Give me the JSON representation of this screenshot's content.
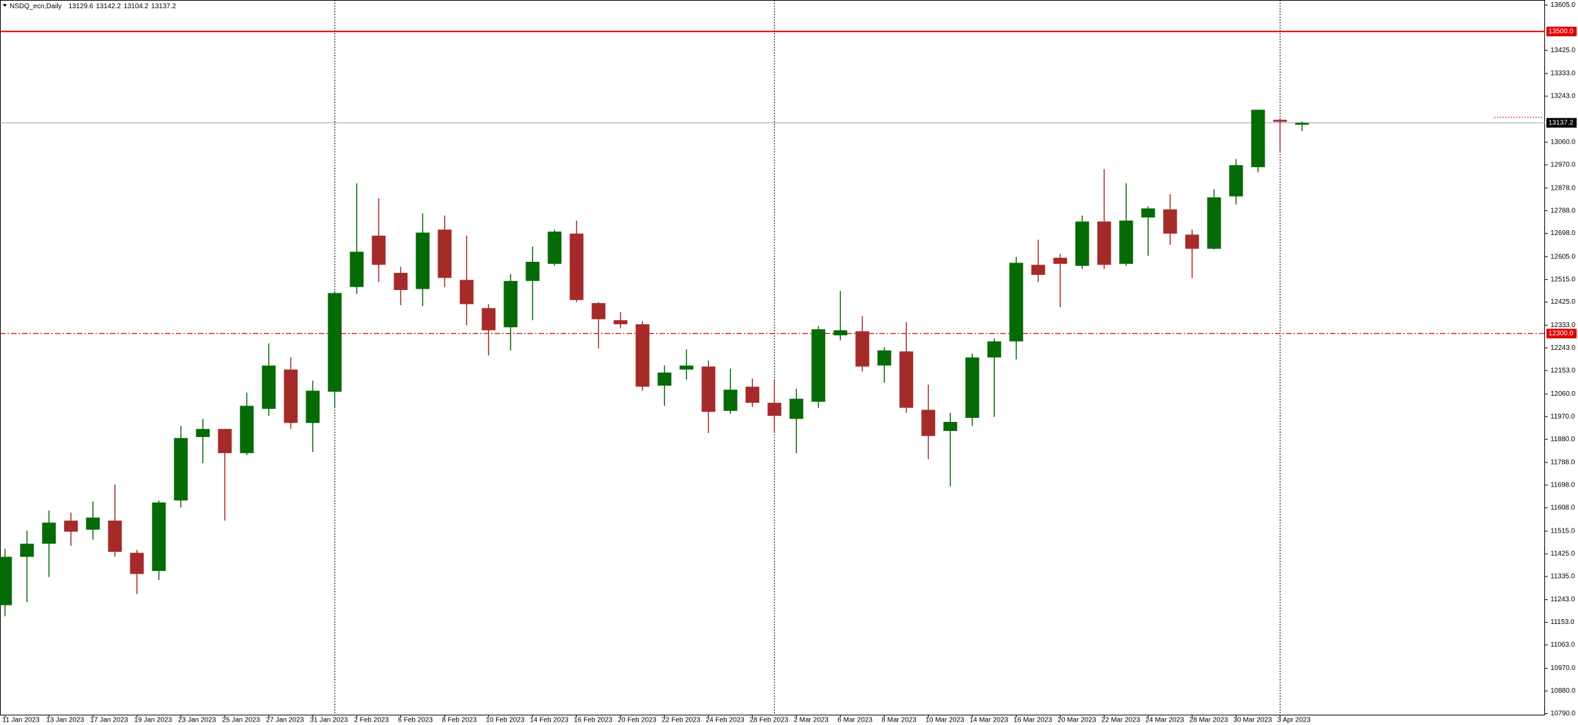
{
  "chart_data": {
    "type": "candlestick",
    "title": "NSDQ_ecn,Daily",
    "categories": [
      "11 Jan 2023",
      null,
      "13 Jan 2023",
      null,
      "17 Jan 2023",
      null,
      "19 Jan 2023",
      null,
      "23 Jan 2023",
      null,
      "25 Jan 2023",
      null,
      "27 Jan 2023",
      null,
      "31 Jan 2023",
      null,
      "2 Feb 2023",
      null,
      "6 Feb 2023",
      null,
      "8 Feb 2023",
      null,
      "10 Feb 2023",
      null,
      "14 Feb 2023",
      null,
      "16 Feb 2023",
      null,
      "20 Feb 2023",
      null,
      "22 Feb 2023",
      null,
      "24 Feb 2023",
      null,
      "28 Feb 2023",
      null,
      "2 Mar 2023",
      null,
      "6 Mar 2023",
      null,
      "8 Mar 2023",
      null,
      "10 Mar 2023",
      null,
      "14 Mar 2023",
      null,
      "16 Mar 2023",
      null,
      "20 Mar 2023",
      null,
      "22 Mar 2023",
      null,
      "24 Mar 2023",
      null,
      "28 Mar 2023",
      null,
      "30 Mar 2023",
      null,
      "3 Apr 2023",
      null
    ],
    "open": [
      11221,
      11413,
      11465,
      11557,
      11521,
      11557,
      11429,
      11357,
      11637,
      11889,
      11921,
      11825,
      12001,
      12157,
      11945,
      12069,
      12485,
      12689,
      12541,
      12477,
      12713,
      12513,
      12401,
      12325,
      12509,
      12577,
      12697,
      12421,
      12353,
      12337,
      12093,
      12157,
      12169,
      11993,
      12089,
      12025,
      11961,
      12029,
      12293,
      12309,
      12173,
      12229,
      11997,
      11913,
      11965,
      12205,
      12269,
      12573,
      12601,
      12569,
      12745,
      12577,
      12761,
      12793,
      12693,
      12637,
      12845,
      12961,
      13149,
      13129.6
    ],
    "high": [
      11445,
      11517,
      11597,
      11589,
      11633,
      11701,
      11441,
      11637,
      11933,
      11961,
      11921,
      12065,
      12261,
      12205,
      12113,
      12469,
      12897,
      12837,
      12565,
      12777,
      12769,
      12689,
      12417,
      12537,
      12645,
      12713,
      12749,
      12425,
      12385,
      12349,
      12173,
      12237,
      12193,
      12161,
      12121,
      12117,
      12081,
      12329,
      12469,
      12369,
      12245,
      12345,
      12097,
      11985,
      12221,
      12281,
      12605,
      12673,
      12617,
      12769,
      12953,
      12897,
      12805,
      12853,
      12713,
      12873,
      12993,
      13189,
      13153,
      13142.2
    ],
    "low": [
      11177,
      11233,
      11333,
      11457,
      11481,
      11413,
      11265,
      11321,
      11609,
      11785,
      11557,
      11817,
      11973,
      11921,
      11829,
      12009,
      12457,
      12505,
      12413,
      12409,
      12485,
      12333,
      12213,
      12233,
      12353,
      12569,
      12425,
      12241,
      12321,
      12073,
      12013,
      12117,
      11905,
      11981,
      12009,
      11909,
      11825,
      12005,
      12273,
      12149,
      12105,
      11985,
      11801,
      11693,
      11933,
      11969,
      12197,
      12505,
      12405,
      12557,
      12557,
      12569,
      12609,
      12653,
      12521,
      12633,
      12813,
      12941,
      13025,
      13104.2
    ],
    "close": [
      11413,
      11465,
      11549,
      11513,
      11569,
      11433,
      11345,
      11629,
      11885,
      11921,
      11825,
      12013,
      12173,
      11945,
      12073,
      12461,
      12625,
      12573,
      12473,
      12701,
      12521,
      12417,
      12313,
      12509,
      12585,
      12705,
      12433,
      12357,
      12337,
      12089,
      12145,
      12173,
      11989,
      12077,
      12025,
      11973,
      12041,
      12317,
      12313,
      12169,
      12233,
      12005,
      11893,
      11949,
      12205,
      12269,
      12581,
      12533,
      12577,
      12745,
      12573,
      12749,
      12797,
      12697,
      12637,
      12841,
      12969,
      13189,
      13141,
      13137.2
    ],
    "up_color": "#066a06",
    "down_color": "#a52a2a",
    "ylim": [
      10786,
      13625
    ],
    "yticks": [
      {
        "value": 13605,
        "label": "13605.0"
      },
      {
        "value": 13425,
        "label": "13425.0"
      },
      {
        "value": 13333,
        "label": "13333.0"
      },
      {
        "value": 13243,
        "label": "13243.0"
      },
      {
        "value": 13060,
        "label": "13060.0"
      },
      {
        "value": 12970,
        "label": "12970.0"
      },
      {
        "value": 12878,
        "label": "12878.0"
      },
      {
        "value": 12788,
        "label": "12788.0"
      },
      {
        "value": 12698,
        "label": "12698.0"
      },
      {
        "value": 12605,
        "label": "12605.0"
      },
      {
        "value": 12515,
        "label": "12515.0"
      },
      {
        "value": 12425,
        "label": "12425.0"
      },
      {
        "value": 12333,
        "label": "12333.0"
      },
      {
        "value": 12243,
        "label": "12243.0"
      },
      {
        "value": 12153,
        "label": "12153.0"
      },
      {
        "value": 12060,
        "label": "12060.0"
      },
      {
        "value": 11970,
        "label": "11970.0"
      },
      {
        "value": 11880,
        "label": "11880.0"
      },
      {
        "value": 11788,
        "label": "11788.0"
      },
      {
        "value": 11698,
        "label": "11698.0"
      },
      {
        "value": 11608,
        "label": "11608.0"
      },
      {
        "value": 11515,
        "label": "11515.0"
      },
      {
        "value": 11425,
        "label": "11425.0"
      },
      {
        "value": 11335,
        "label": "11335.0"
      },
      {
        "value": 11243,
        "label": "11243.0"
      },
      {
        "value": 11153,
        "label": "11153.0"
      },
      {
        "value": 11063,
        "label": "11063.0"
      },
      {
        "value": 10970,
        "label": "10970.0"
      },
      {
        "value": 10880,
        "label": "10880.0"
      },
      {
        "value": 10790,
        "label": "10790.0"
      }
    ],
    "levels": [
      {
        "value": 13500,
        "label": "13500.0",
        "color": "#e00000",
        "style": "solid"
      },
      {
        "value": 12300,
        "label": "12300.0",
        "color": "#e00000",
        "style": "dashdot"
      }
    ],
    "price_line": {
      "value": 13137.2,
      "color": "#a0a0a0"
    }
  }
}
